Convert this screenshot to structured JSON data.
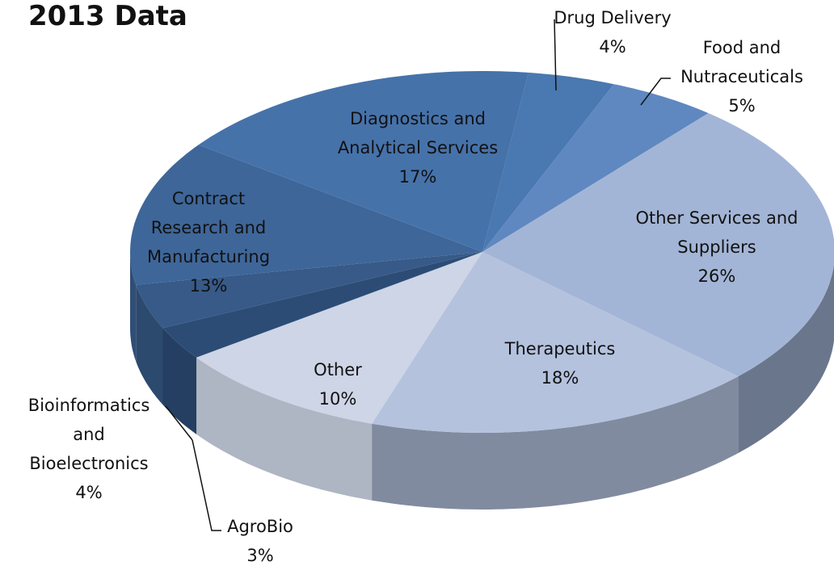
{
  "chart_data": {
    "type": "pie",
    "title": "2013 Data",
    "categories": [
      "Drug Delivery",
      "Food and Nutraceuticals",
      "Other Services and Suppliers",
      "Therapeutics",
      "Other",
      "AgroBio",
      "Bioinformatics and Bioelectronics",
      "Contract Research and Manufacturing",
      "Diagnostics and Analytical Services"
    ],
    "values": [
      4,
      5,
      26,
      18,
      10,
      3,
      4,
      13,
      17
    ],
    "value_labels": [
      "4%",
      "5%",
      "26%",
      "18%",
      "10%",
      "3%",
      "4%",
      "13%",
      "17%"
    ],
    "colors": [
      "#4a78b0",
      "#5f88c0",
      "#a3b5d6",
      "#b4c2de",
      "#cdd5e6",
      "#2c4c75",
      "#375a88",
      "#3e6699",
      "#4672aa"
    ],
    "legend": false
  }
}
